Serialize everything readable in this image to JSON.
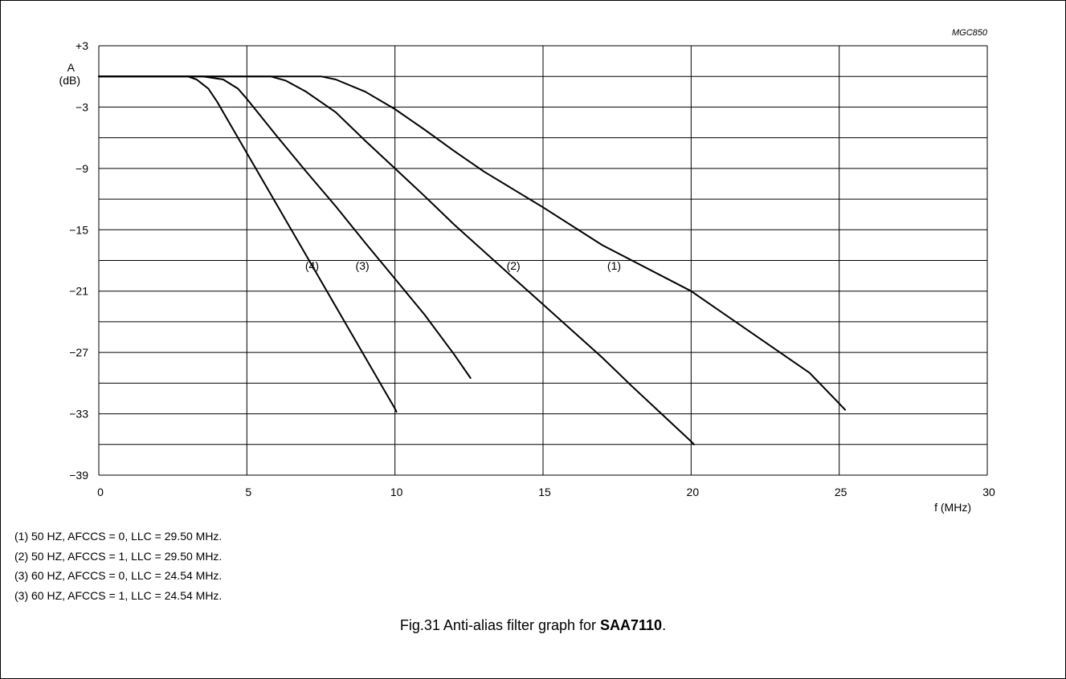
{
  "chart_data": {
    "type": "line",
    "code": "MGC850",
    "ylabel": "A",
    "yunit": "(dB)",
    "xlabel": "f (MHz)",
    "xlim": [
      0,
      30
    ],
    "ylim": [
      -39,
      3
    ],
    "xticks": [
      0,
      5,
      10,
      15,
      20,
      25,
      30
    ],
    "yticks": [
      3,
      -3,
      -9,
      -15,
      -21,
      -27,
      -33,
      -39
    ],
    "ytick_labels": [
      "+3",
      "−3",
      "−9",
      "−15",
      "−21",
      "−27",
      "−33",
      "−39"
    ],
    "grid": true,
    "series": [
      {
        "name": "(1)",
        "points": [
          [
            0,
            0
          ],
          [
            5,
            0
          ],
          [
            6,
            0
          ],
          [
            7,
            0
          ],
          [
            7.5,
            0
          ],
          [
            8,
            -0.3
          ],
          [
            9,
            -1.5
          ],
          [
            10,
            -3.2
          ],
          [
            11,
            -5.2
          ],
          [
            12,
            -7.3
          ],
          [
            13,
            -9.3
          ],
          [
            15,
            -12.8
          ],
          [
            17,
            -16.5
          ],
          [
            20,
            -21
          ],
          [
            22,
            -25
          ],
          [
            24,
            -29
          ],
          [
            25,
            -32
          ],
          [
            25.2,
            -32.6
          ]
        ]
      },
      {
        "name": "(2)",
        "points": [
          [
            0,
            0
          ],
          [
            4,
            0
          ],
          [
            5,
            0
          ],
          [
            5.8,
            0
          ],
          [
            6.3,
            -0.4
          ],
          [
            7,
            -1.5
          ],
          [
            8,
            -3.5
          ],
          [
            9,
            -6.3
          ],
          [
            10,
            -9
          ],
          [
            11,
            -11.7
          ],
          [
            12,
            -14.5
          ],
          [
            14,
            -19.7
          ],
          [
            15,
            -22.3
          ],
          [
            17,
            -27.5
          ],
          [
            18,
            -30.3
          ],
          [
            19,
            -33
          ],
          [
            20,
            -35.7
          ],
          [
            20.1,
            -36
          ]
        ]
      },
      {
        "name": "(3)",
        "points": [
          [
            0,
            0
          ],
          [
            3.5,
            0
          ],
          [
            4.2,
            -0.3
          ],
          [
            4.7,
            -1.2
          ],
          [
            5,
            -2.2
          ],
          [
            6,
            -5.8
          ],
          [
            7,
            -9.3
          ],
          [
            8,
            -12.7
          ],
          [
            9,
            -16.3
          ],
          [
            10,
            -19.8
          ],
          [
            11,
            -23.3
          ],
          [
            12,
            -27.2
          ],
          [
            12.55,
            -29.5
          ]
        ]
      },
      {
        "name": "(4)",
        "points": [
          [
            0,
            0
          ],
          [
            3,
            0
          ],
          [
            3.3,
            -0.3
          ],
          [
            3.7,
            -1.2
          ],
          [
            4,
            -2.5
          ],
          [
            5,
            -7.5
          ],
          [
            6,
            -12.5
          ],
          [
            7,
            -17.5
          ],
          [
            8,
            -22.5
          ],
          [
            9,
            -27.5
          ],
          [
            10,
            -32.5
          ],
          [
            10.05,
            -32.8
          ]
        ]
      }
    ],
    "series_label_points": [
      [
        17.4,
        -18.9
      ],
      [
        14,
        -18.9
      ],
      [
        8.9,
        -18.9
      ],
      [
        7.2,
        -18.9
      ]
    ]
  },
  "notes": [
    "(1) 50 HZ, AFCCS = 0, LLC = 29.50 MHz.",
    "(2) 50 HZ, AFCCS = 1, LLC = 29.50 MHz.",
    "(3) 60 HZ, AFCCS = 0, LLC = 24.54 MHz.",
    "(3) 60 HZ, AFCCS = 1, LLC = 24.54 MHz."
  ],
  "caption": {
    "prefix": "Fig.31  Anti-alias filter graph for ",
    "bold": "SAA7110",
    "suffix": "."
  }
}
